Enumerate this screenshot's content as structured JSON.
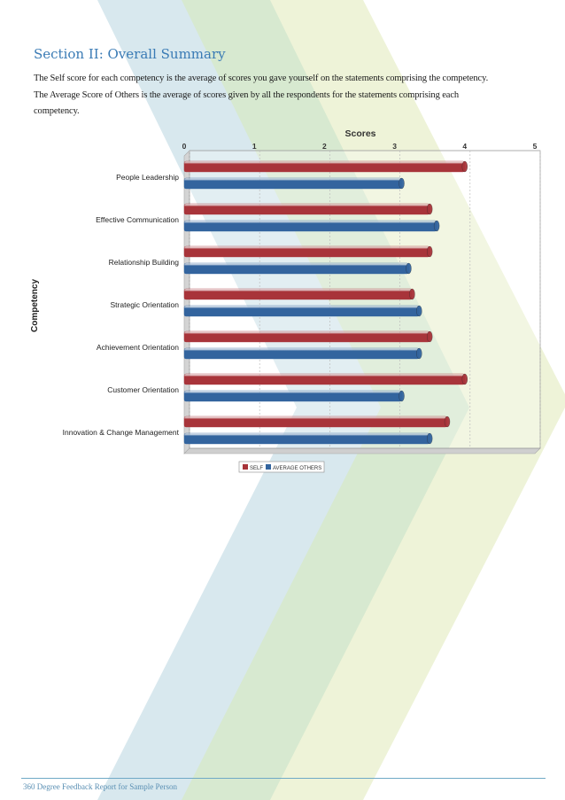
{
  "section": {
    "title": "Section II: Overall Summary",
    "description": "The Self score for each competency is the average of scores you gave yourself on the statements comprising the competency. The Average Score of Others is the average of scores given by all the respondents for the statements comprising each competency."
  },
  "footer": {
    "text": "360 Degree Feedback Report for Sample Person"
  },
  "colors": {
    "self": "#a8343a",
    "others": "#33649e",
    "band_blue": "#d8e8ee",
    "band_green": "#d7e9d0",
    "band_yellow": "#eef3d8"
  },
  "chart_data": {
    "type": "bar",
    "orientation": "horizontal",
    "title": "Scores",
    "ylabel": "Competency",
    "xlim": [
      0,
      5
    ],
    "xticks": [
      "0",
      "1",
      "2",
      "3",
      "4",
      "5"
    ],
    "grid": true,
    "legend_placement": "bottom",
    "categories": [
      "People Leadership",
      "Effective Communication",
      "Relationship Building",
      "Strategic Orientation",
      "Achievement Orientation",
      "Customer Orientation",
      "Innovation & Change Management"
    ],
    "series": [
      {
        "name": "SELF",
        "values": [
          4.0,
          3.5,
          3.5,
          3.25,
          3.5,
          4.0,
          3.75
        ]
      },
      {
        "name": "AVERAGE OTHERS",
        "values": [
          3.1,
          3.6,
          3.2,
          3.35,
          3.35,
          3.1,
          3.5
        ]
      }
    ]
  }
}
